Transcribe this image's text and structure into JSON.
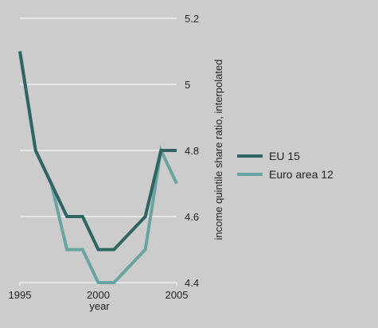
{
  "chart_data": {
    "type": "line",
    "title": "",
    "xlabel": "year",
    "ylabel": "income quintile share ratio, interpolated",
    "xlim": [
      1995,
      2005
    ],
    "ylim": [
      4.4,
      5.2
    ],
    "x_ticks": [
      "1995",
      "2000",
      "2005"
    ],
    "y_ticks": [
      "4.4",
      "4.6",
      "4.8",
      "5",
      "5.2"
    ],
    "y_axis_position": "right",
    "grid": "horizontal",
    "legend_position": "right",
    "x": [
      1995,
      1996,
      1997,
      1998,
      1999,
      2000,
      2001,
      2002,
      2003,
      2004,
      2005
    ],
    "series": [
      {
        "name": "EU 15",
        "color": "#2f6462",
        "values": [
          5.1,
          4.8,
          4.7,
          4.6,
          4.6,
          4.5,
          4.5,
          4.55,
          4.6,
          4.8,
          4.8
        ]
      },
      {
        "name": "Euro area 12",
        "color": "#6aa4a2",
        "values": [
          5.1,
          4.8,
          4.7,
          4.5,
          4.5,
          4.4,
          4.4,
          4.45,
          4.5,
          4.8,
          4.7
        ]
      }
    ]
  }
}
